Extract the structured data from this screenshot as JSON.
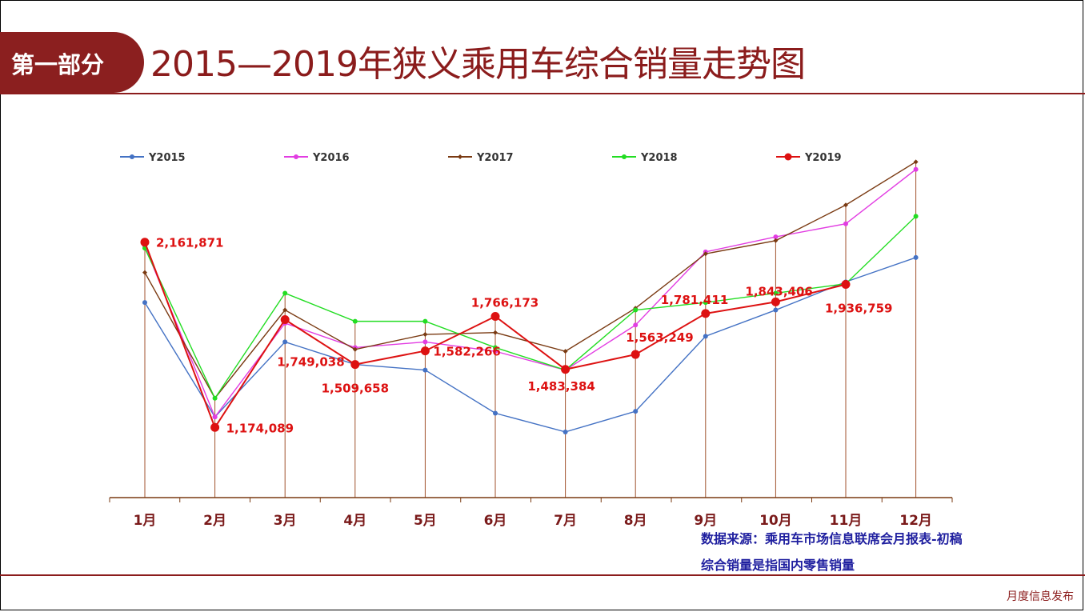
{
  "header": {
    "section_label": "第一部分",
    "title": "2015—2019年狭义乘用车综合销量走势图"
  },
  "notes": {
    "source": "数据来源：乘用车市场信息联席会月报表-初稿",
    "definition": "综合销量是指国内零售销量"
  },
  "footer": {
    "label": "月度信息发布"
  },
  "colors": {
    "accent": "#8b1c1c",
    "Y2015": "#4472c4",
    "Y2016": "#e23de2",
    "Y2017": "#7a3a12",
    "Y2018": "#22dd22",
    "Y2019": "#dd1111",
    "data_label": "#dd1111",
    "axis_label": "#7a1a1a"
  },
  "chart_data": {
    "type": "line",
    "title": "",
    "xlabel": "",
    "ylabel": "",
    "categories": [
      "1月",
      "2月",
      "3月",
      "4月",
      "5月",
      "6月",
      "7月",
      "8月",
      "9月",
      "10月",
      "11月",
      "12月"
    ],
    "ylim": [
      800000,
      2600000
    ],
    "grid": false,
    "legend_position": "top",
    "series": [
      {
        "name": "Y2015",
        "values": [
          1840000,
          1230000,
          1630000,
          1510000,
          1480000,
          1250000,
          1150000,
          1260000,
          1660000,
          1800000,
          1950000,
          2080000
        ]
      },
      {
        "name": "Y2016",
        "values": [
          2140000,
          1230000,
          1730000,
          1600000,
          1630000,
          1580000,
          1480000,
          1720000,
          2110000,
          2190000,
          2260000,
          2550000
        ]
      },
      {
        "name": "Y2017",
        "values": [
          2000000,
          1330000,
          1800000,
          1590000,
          1670000,
          1680000,
          1580000,
          1810000,
          2100000,
          2170000,
          2360000,
          2590000
        ]
      },
      {
        "name": "Y2018",
        "values": [
          2130000,
          1330000,
          1890000,
          1740000,
          1740000,
          1600000,
          1480000,
          1800000,
          1840000,
          1890000,
          1940000,
          2300000
        ]
      },
      {
        "name": "Y2019",
        "values": [
          2161871,
          1174089,
          1749038,
          1509658,
          1582266,
          1766173,
          1483384,
          1563249,
          1781411,
          1843406,
          1936759,
          null
        ]
      }
    ],
    "data_labels": [
      "2,161,871",
      "1,174,089",
      "1,749,038",
      "1,509,658",
      "1,582,266",
      "1,766,173",
      "1,483,384",
      "1,563,249",
      "1,781,411",
      "1,843,406",
      "1,936,759"
    ]
  }
}
